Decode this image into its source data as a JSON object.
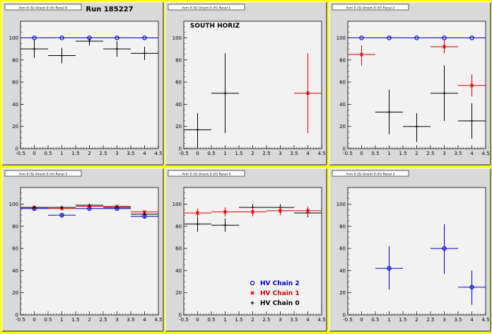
{
  "page": {
    "run_label": "Run 185227",
    "south_label": "SOUTH HORIZ",
    "colors": {
      "frame": "#ffff00",
      "pad": "#d9d9d9",
      "plot_bg": "#f2f2f2",
      "hv2": "#0000cc",
      "hv1": "#dd0000",
      "hv0": "#000000"
    }
  },
  "legend": {
    "items": [
      {
        "label": "HV Chain 2",
        "color": "#0000cc",
        "marker": "circle"
      },
      {
        "label": "HV Chain 1",
        "color": "#dd0000",
        "marker": "star"
      },
      {
        "label": "HV Chain 0",
        "color": "#000000",
        "marker": "plus"
      }
    ]
  },
  "chart_data": [
    {
      "type": "scatter",
      "title": "Arm 0 (S) Orient 0 (H) Panel 0",
      "xlim": [
        -0.5,
        4.5
      ],
      "ylim": [
        0,
        115
      ],
      "x_ticks": [
        "-0.5",
        "0",
        "0.5",
        "1",
        "1.5",
        "2",
        "2.5",
        "3",
        "3.5",
        "4",
        "4.5"
      ],
      "y_ticks": [
        "0",
        "20",
        "40",
        "60",
        "80",
        "100"
      ],
      "series": [
        {
          "color": "#0000cc",
          "marker": "circle",
          "points": [
            {
              "x": 0,
              "y": 100,
              "ylo": 100,
              "yhi": 100
            },
            {
              "x": 1,
              "y": 100,
              "ylo": 100,
              "yhi": 100
            },
            {
              "x": 2,
              "y": 100,
              "ylo": 100,
              "yhi": 100
            },
            {
              "x": 3,
              "y": 100,
              "ylo": 100,
              "yhi": 100
            },
            {
              "x": 4,
              "y": 100,
              "ylo": 100,
              "yhi": 100
            }
          ]
        },
        {
          "color": "#000000",
          "marker": "plus",
          "points": [
            {
              "x": 0,
              "y": 90,
              "ylo": 82,
              "yhi": 98
            },
            {
              "x": 1,
              "y": 84,
              "ylo": 77,
              "yhi": 91
            },
            {
              "x": 2,
              "y": 97,
              "ylo": 93,
              "yhi": 100
            },
            {
              "x": 3,
              "y": 90,
              "ylo": 83,
              "yhi": 97
            },
            {
              "x": 4,
              "y": 86,
              "ylo": 80,
              "yhi": 92
            }
          ]
        }
      ]
    },
    {
      "type": "scatter",
      "title": "Arm 0 (S) Orient 0 (H) Panel 1",
      "xlim": [
        -0.5,
        4.5
      ],
      "ylim": [
        0,
        115
      ],
      "x_ticks": [
        "-0.5",
        "0",
        "0.5",
        "1",
        "1.5",
        "2",
        "2.5",
        "3",
        "3.5",
        "4",
        "4.5"
      ],
      "y_ticks": [
        "0",
        "20",
        "40",
        "60",
        "80",
        "100"
      ],
      "series": [
        {
          "color": "#000000",
          "marker": "plus",
          "points": [
            {
              "x": 0,
              "y": 17,
              "ylo": 0,
              "yhi": 32
            },
            {
              "x": 1,
              "y": 50,
              "ylo": 14,
              "yhi": 86
            }
          ]
        },
        {
          "color": "#dd0000",
          "marker": "star",
          "points": [
            {
              "x": 4,
              "y": 50,
              "ylo": 14,
              "yhi": 86
            }
          ]
        }
      ]
    },
    {
      "type": "scatter",
      "title": "Arm 0 (S) Orient 0 (H) Panel 2",
      "xlim": [
        -0.5,
        4.5
      ],
      "ylim": [
        0,
        115
      ],
      "x_ticks": [
        "-0.5",
        "0",
        "0.5",
        "1",
        "1.5",
        "2",
        "2.5",
        "3",
        "3.5",
        "4",
        "4.5"
      ],
      "y_ticks": [
        "0",
        "20",
        "40",
        "60",
        "80",
        "100"
      ],
      "series": [
        {
          "color": "#0000cc",
          "marker": "circle",
          "points": [
            {
              "x": 0,
              "y": 100,
              "ylo": 100,
              "yhi": 100
            },
            {
              "x": 1,
              "y": 100,
              "ylo": 100,
              "yhi": 100
            },
            {
              "x": 2,
              "y": 100,
              "ylo": 100,
              "yhi": 100
            },
            {
              "x": 3,
              "y": 100,
              "ylo": 100,
              "yhi": 100
            },
            {
              "x": 4,
              "y": 100,
              "ylo": 100,
              "yhi": 100
            }
          ]
        },
        {
          "color": "#dd0000",
          "marker": "star",
          "points": [
            {
              "x": 0,
              "y": 85,
              "ylo": 75,
              "yhi": 93
            },
            {
              "x": 3,
              "y": 92,
              "ylo": 86,
              "yhi": 98
            },
            {
              "x": 4,
              "y": 57,
              "ylo": 47,
              "yhi": 67
            }
          ]
        },
        {
          "color": "#000000",
          "marker": "plus",
          "points": [
            {
              "x": 1,
              "y": 33,
              "ylo": 13,
              "yhi": 53
            },
            {
              "x": 2,
              "y": 20,
              "ylo": 6,
              "yhi": 32
            },
            {
              "x": 3,
              "y": 50,
              "ylo": 25,
              "yhi": 75
            },
            {
              "x": 4,
              "y": 25,
              "ylo": 9,
              "yhi": 41
            }
          ]
        }
      ]
    },
    {
      "type": "scatter",
      "title": "Arm 0 (S) Orient 0 (H) Panel 5",
      "xlim": [
        -0.5,
        4.5
      ],
      "ylim": [
        0,
        115
      ],
      "x_ticks": [
        "-0.5",
        "0",
        "0.5",
        "1",
        "1.5",
        "2",
        "2.5",
        "3",
        "3.5",
        "4",
        "4.5"
      ],
      "y_ticks": [
        "0",
        "20",
        "40",
        "60",
        "80",
        "100"
      ],
      "series": [
        {
          "color": "#0000cc",
          "marker": "circle",
          "points": [
            {
              "x": 0,
              "y": 96,
              "ylo": 94,
              "yhi": 98
            },
            {
              "x": 1,
              "y": 90,
              "ylo": 88,
              "yhi": 92
            },
            {
              "x": 2,
              "y": 96,
              "ylo": 95,
              "yhi": 97
            },
            {
              "x": 3,
              "y": 96,
              "ylo": 95,
              "yhi": 97
            },
            {
              "x": 4,
              "y": 89,
              "ylo": 87,
              "yhi": 91
            }
          ]
        },
        {
          "color": "#dd0000",
          "marker": "star",
          "points": [
            {
              "x": 0,
              "y": 97,
              "ylo": 96,
              "yhi": 98
            },
            {
              "x": 1,
              "y": 96,
              "ylo": 95,
              "yhi": 97
            },
            {
              "x": 2,
              "y": 98,
              "ylo": 97,
              "yhi": 99
            },
            {
              "x": 3,
              "y": 98,
              "ylo": 97,
              "yhi": 99
            },
            {
              "x": 4,
              "y": 93,
              "ylo": 92,
              "yhi": 94
            }
          ]
        },
        {
          "color": "#000000",
          "marker": "plus",
          "points": [
            {
              "x": 0,
              "y": 97,
              "ylo": 96,
              "yhi": 98
            },
            {
              "x": 1,
              "y": 97,
              "ylo": 96,
              "yhi": 98
            },
            {
              "x": 2,
              "y": 99,
              "ylo": 98,
              "yhi": 100
            },
            {
              "x": 3,
              "y": 97,
              "ylo": 96,
              "yhi": 98
            },
            {
              "x": 4,
              "y": 91,
              "ylo": 90,
              "yhi": 92
            }
          ]
        }
      ]
    },
    {
      "type": "scatter",
      "title": "Arm 0 (S) Orient 0 (H) Panel 4",
      "xlim": [
        -0.5,
        4.5
      ],
      "ylim": [
        0,
        115
      ],
      "x_ticks": [
        "-0.5",
        "0",
        "0.5",
        "1",
        "1.5",
        "2",
        "2.5",
        "3",
        "3.5",
        "4",
        "4.5"
      ],
      "y_ticks": [
        "0",
        "20",
        "40",
        "60",
        "80",
        "100"
      ],
      "series": [
        {
          "color": "#000000",
          "marker": "plus",
          "points": [
            {
              "x": 0,
              "y": 82,
              "ylo": 75,
              "yhi": 88
            },
            {
              "x": 1,
              "y": 81,
              "ylo": 75,
              "yhi": 87
            },
            {
              "x": 2,
              "y": 97,
              "ylo": 92,
              "yhi": 100
            },
            {
              "x": 3,
              "y": 97,
              "ylo": 92,
              "yhi": 100
            },
            {
              "x": 4,
              "y": 92,
              "ylo": 88,
              "yhi": 96
            }
          ]
        },
        {
          "color": "#dd0000",
          "marker": "star",
          "points": [
            {
              "x": 0,
              "y": 92,
              "ylo": 88,
              "yhi": 96
            },
            {
              "x": 1,
              "y": 93,
              "ylo": 89,
              "yhi": 97
            },
            {
              "x": 2,
              "y": 93,
              "ylo": 89,
              "yhi": 97
            },
            {
              "x": 3,
              "y": 94,
              "ylo": 90,
              "yhi": 98
            },
            {
              "x": 4,
              "y": 94,
              "ylo": 90,
              "yhi": 98
            }
          ]
        }
      ]
    },
    {
      "type": "scatter",
      "title": "Arm 0 (S) Orient 0 (H) Panel 3",
      "xlim": [
        -0.5,
        4.5
      ],
      "ylim": [
        0,
        115
      ],
      "x_ticks": [
        "-0.5",
        "0",
        "0.5",
        "1",
        "1.5",
        "2",
        "2.5",
        "3",
        "3.5",
        "4",
        "4.5"
      ],
      "y_ticks": [
        "0",
        "20",
        "40",
        "60",
        "80",
        "100"
      ],
      "series": [
        {
          "color": "#0000cc",
          "marker": "circle",
          "points": [
            {
              "x": 1,
              "y": 42,
              "ylo": 23,
              "yhi": 62
            },
            {
              "x": 3,
              "y": 60,
              "ylo": 37,
              "yhi": 82
            },
            {
              "x": 4,
              "y": 25,
              "ylo": 9,
              "yhi": 40
            }
          ]
        }
      ]
    }
  ]
}
